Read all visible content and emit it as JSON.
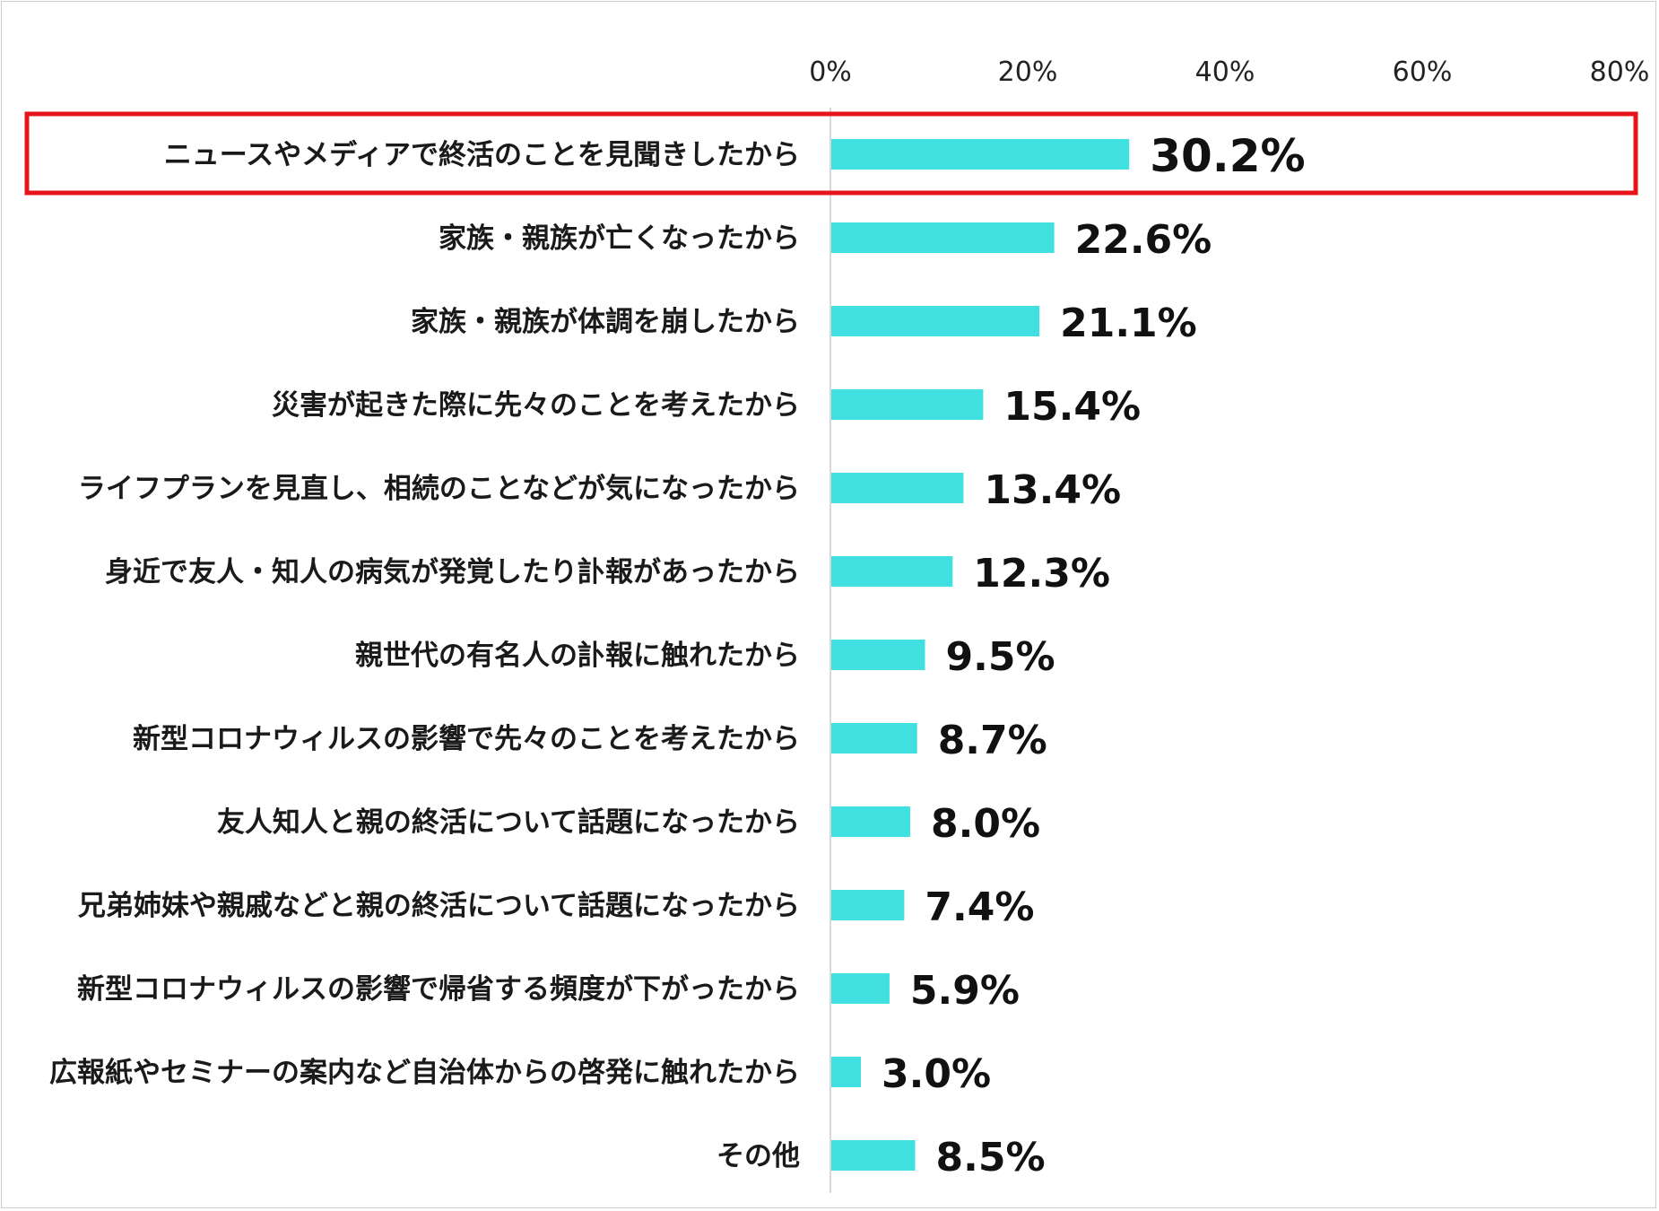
{
  "chart_data": {
    "type": "bar",
    "orientation": "horizontal",
    "categories": [
      "ニュースやメディアで終活のことを見聞きしたから",
      "家族・親族が亡くなったから",
      "家族・親族が体調を崩したから",
      "災害が起きた際に先々のことを考えたから",
      "ライフプランを見直し、相続のことなどが気になったから",
      "身近で友人・知人の病気が発覚したり訃報があったから",
      "親世代の有名人の訃報に触れたから",
      "新型コロナウィルスの影響で先々のことを考えたから",
      "友人知人と親の終活について話題になったから",
      "兄弟姉妹や親戚などと親の終活について話題になったから",
      "新型コロナウィルスの影響で帰省する頻度が下がったから",
      "広報紙やセミナーの案内など自治体からの啓発に触れたから",
      "その他"
    ],
    "values": [
      30.2,
      22.6,
      21.1,
      15.4,
      13.4,
      12.3,
      9.5,
      8.7,
      8.0,
      7.4,
      5.9,
      3.0,
      8.5
    ],
    "value_labels": [
      "30.2%",
      "22.6%",
      "21.1%",
      "15.4%",
      "13.4%",
      "12.3%",
      "9.5%",
      "8.7%",
      "8.0%",
      "7.4%",
      "5.9%",
      "3.0%",
      "8.5%"
    ],
    "xlim": [
      0,
      80
    ],
    "xticks": [
      "0%",
      "20%",
      "40%",
      "60%",
      "80%"
    ],
    "axis_position": "top",
    "grid": false,
    "highlighted_index": 0,
    "colors": {
      "bar": "#40e0e0",
      "highlight_box": "#e8141c",
      "axis": "#cccccc"
    }
  }
}
